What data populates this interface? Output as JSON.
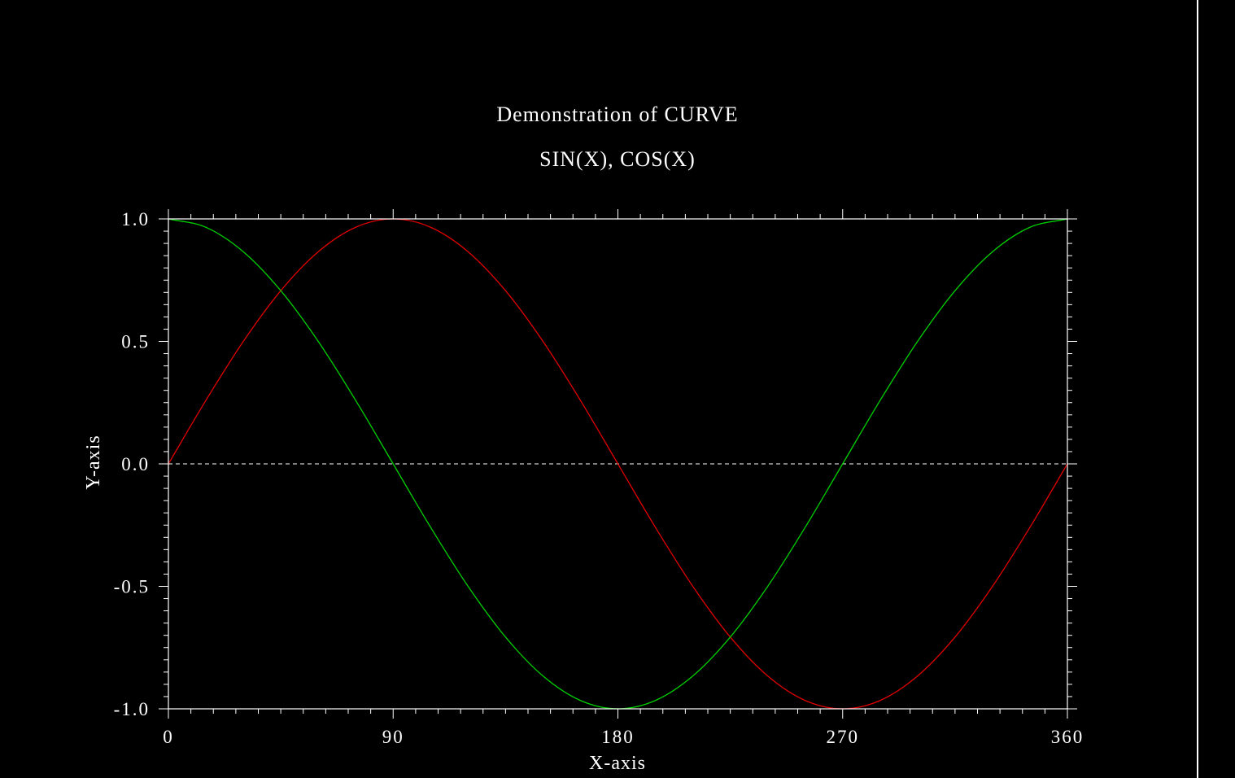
{
  "chart_data": {
    "type": "line",
    "title": "Demonstration of CURVE",
    "subtitle": "SIN(X), COS(X)",
    "xlabel": "X-axis",
    "ylabel": "Y-axis",
    "xlim": [
      0,
      360
    ],
    "ylim": [
      -1.0,
      1.0
    ],
    "x_ticks": [
      0,
      90,
      180,
      270,
      360
    ],
    "x_tick_labels": [
      "0",
      "90",
      "180",
      "270",
      "360"
    ],
    "y_ticks": [
      -1.0,
      -0.5,
      0.0,
      0.5,
      1.0
    ],
    "y_tick_labels": [
      "-1.0",
      "-0.5",
      "0.0",
      "0.5",
      "1.0"
    ],
    "x_minor_step": 9,
    "y_minor_step": 0.05,
    "zero_line": true,
    "grid": false,
    "series": [
      {
        "color": "#e00000",
        "x": [
          0,
          15,
          30,
          45,
          60,
          75,
          90,
          105,
          120,
          135,
          150,
          165,
          180,
          195,
          210,
          225,
          240,
          255,
          270,
          285,
          300,
          315,
          330,
          345,
          360
        ],
        "y": [
          0.0,
          0.259,
          0.5,
          0.707,
          0.866,
          0.966,
          1.0,
          0.966,
          0.866,
          0.707,
          0.5,
          0.259,
          0.0,
          -0.259,
          -0.5,
          -0.707,
          -0.866,
          -0.966,
          -1.0,
          -0.966,
          -0.866,
          -0.707,
          -0.5,
          -0.259,
          0.0
        ]
      },
      {
        "color": "#00d000",
        "x": [
          0,
          15,
          30,
          45,
          60,
          75,
          90,
          105,
          120,
          135,
          150,
          165,
          180,
          195,
          210,
          225,
          240,
          255,
          270,
          285,
          300,
          315,
          330,
          345,
          360
        ],
        "y": [
          1.0,
          0.966,
          0.866,
          0.707,
          0.5,
          0.259,
          0.0,
          -0.259,
          -0.5,
          -0.707,
          -0.866,
          -0.966,
          -1.0,
          -0.966,
          -0.866,
          -0.707,
          -0.5,
          -0.259,
          0.0,
          0.259,
          0.5,
          0.707,
          0.866,
          0.966,
          1.0
        ]
      }
    ]
  },
  "colors": {
    "background": "#000000",
    "foreground": "#ffffff"
  }
}
